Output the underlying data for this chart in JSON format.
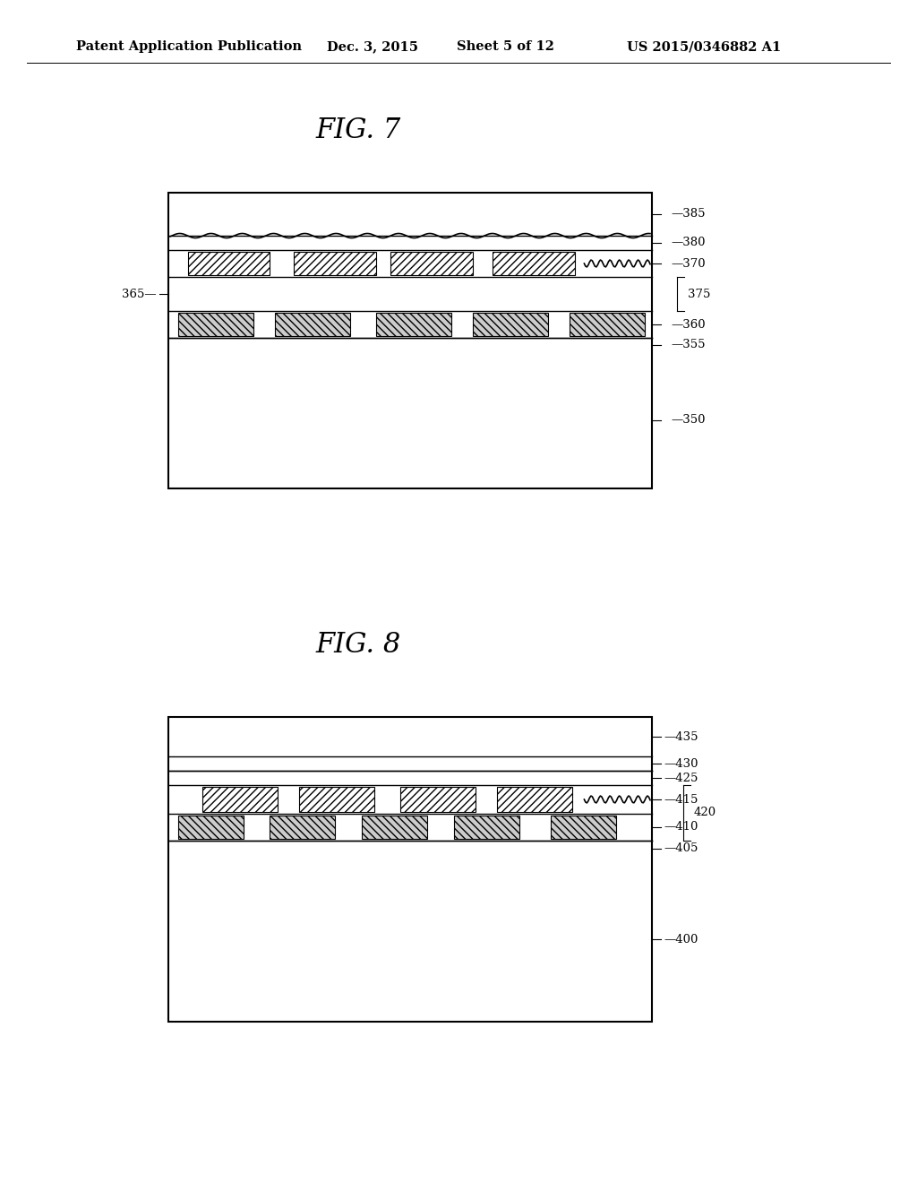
{
  "bg_color": "#ffffff",
  "header_text": "Patent Application Publication",
  "header_date": "Dec. 3, 2015",
  "header_sheet": "Sheet 5 of 12",
  "header_patent": "US 2015/0346882 A1",
  "fig7_title": "FIG. 7",
  "fig8_title": "FIG. 8"
}
